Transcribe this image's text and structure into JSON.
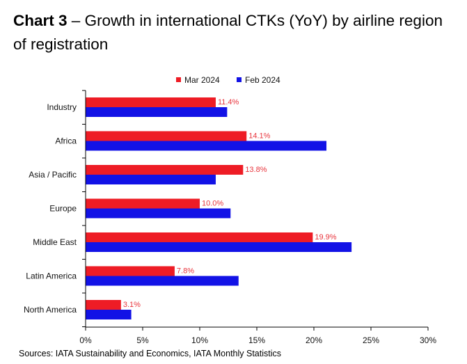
{
  "header": {
    "chart_number": "Chart 3",
    "separator": " – ",
    "title_text": "Growth in international CTKs (YoY) by airline region of registration"
  },
  "source": "Sources: IATA Sustainability and Economics, IATA Monthly Statistics",
  "chart_data": {
    "type": "bar",
    "orientation": "horizontal",
    "categories": [
      "Industry",
      "Africa",
      "Asia / Pacific",
      "Europe",
      "Middle East",
      "Latin America",
      "North America"
    ],
    "series": [
      {
        "name": "Mar 2024",
        "color": "#ee1c25",
        "values": [
          11.4,
          14.1,
          13.8,
          10.0,
          19.9,
          7.8,
          3.1
        ],
        "data_labels": [
          "11.4%",
          "14.1%",
          "13.8%",
          "10.0%",
          "19.9%",
          "7.8%",
          "3.1%"
        ],
        "label_color": "#e8343c"
      },
      {
        "name": "Feb 2024",
        "color": "#1212e6",
        "values": [
          12.4,
          21.1,
          11.4,
          12.7,
          23.3,
          13.4,
          4.0
        ]
      }
    ],
    "x_ticks": [
      0,
      5,
      10,
      15,
      20,
      25,
      30
    ],
    "x_tick_labels": [
      "0%",
      "5%",
      "10%",
      "15%",
      "20%",
      "25%",
      "30%"
    ],
    "xlim": [
      0,
      30
    ],
    "xlabel": "",
    "ylabel": "",
    "grid": false,
    "legend_position": "top"
  }
}
